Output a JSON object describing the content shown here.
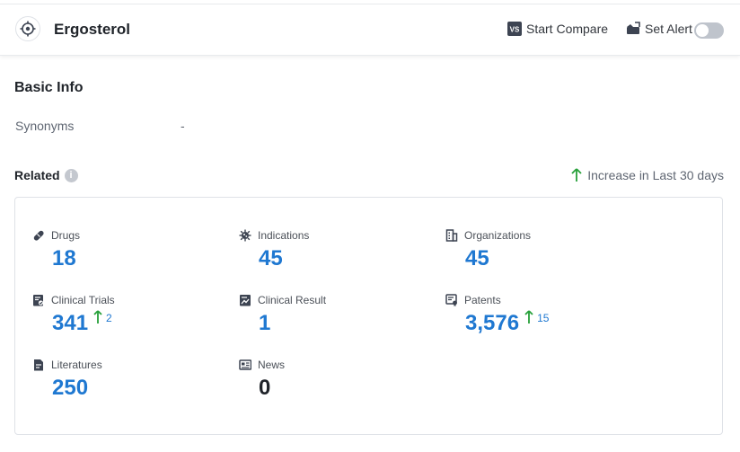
{
  "header": {
    "title": "Ergosterol",
    "compare_label": "Start Compare",
    "compare_badge": "VS",
    "alert_label": "Set Alert",
    "alert_on": false
  },
  "basic_info": {
    "title": "Basic Info",
    "synonyms_label": "Synonyms",
    "synonyms_value": "-"
  },
  "related": {
    "title": "Related",
    "increase_label": "Increase in Last 30 days",
    "items": [
      {
        "label": "Drugs",
        "icon": "pill-icon",
        "value": "18"
      },
      {
        "label": "Indications",
        "icon": "virus-icon",
        "value": "45"
      },
      {
        "label": "Organizations",
        "icon": "building-icon",
        "value": "45"
      },
      {
        "label": "Clinical Trials",
        "icon": "clipboard-icon",
        "value": "341",
        "increase": "2"
      },
      {
        "label": "Clinical Result",
        "icon": "chart-doc-icon",
        "value": "1"
      },
      {
        "label": "Patents",
        "icon": "patent-icon",
        "value": "3,576",
        "increase": "15"
      },
      {
        "label": "Literatures",
        "icon": "document-icon",
        "value": "250"
      },
      {
        "label": "News",
        "icon": "newspaper-icon",
        "value": "0"
      }
    ]
  },
  "colors": {
    "accent": "#1f78d1",
    "increase_green": "#27a03a",
    "icon_dark": "#3d4452"
  }
}
